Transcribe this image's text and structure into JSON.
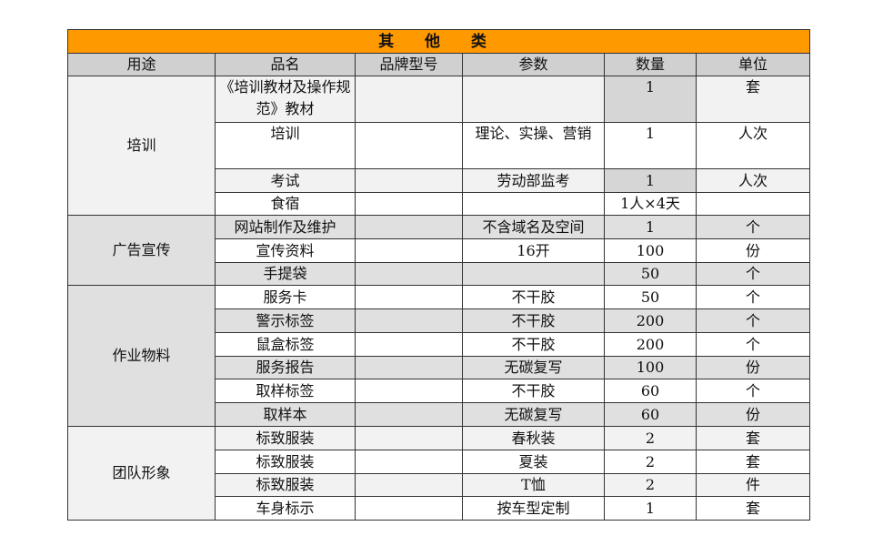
{
  "title": "其 他 类",
  "headers": [
    "用途",
    "品名",
    "品牌型号",
    "参数",
    "数量",
    "单位"
  ],
  "groups": [
    {
      "name": "培训",
      "rows": [
        {
          "item": "《培训教材及操作规范》教材",
          "brand": "",
          "param": "",
          "qty": "1",
          "unit": "套"
        },
        {
          "item": "培训",
          "brand": "",
          "param": "理论、实操、营销",
          "qty": "1",
          "unit": "人次"
        },
        {
          "item": "考试",
          "brand": "",
          "param": "劳动部监考",
          "qty": "1",
          "unit": "人次"
        },
        {
          "item": "食宿",
          "brand": "",
          "param": "",
          "qty": "1人×4天",
          "unit": ""
        }
      ]
    },
    {
      "name": "广告宣传",
      "rows": [
        {
          "item": "网站制作及维护",
          "brand": "",
          "param": "不含域名及空间",
          "qty": "1",
          "unit": "个"
        },
        {
          "item": "宣传资料",
          "brand": "",
          "param": "16开",
          "qty": "100",
          "unit": "份"
        },
        {
          "item": "手提袋",
          "brand": "",
          "param": "",
          "qty": "50",
          "unit": "个"
        }
      ]
    },
    {
      "name": "作业物料",
      "rows": [
        {
          "item": "服务卡",
          "brand": "",
          "param": "不干胶",
          "qty": "50",
          "unit": "个"
        },
        {
          "item": "警示标签",
          "brand": "",
          "param": "不干胶",
          "qty": "200",
          "unit": "个"
        },
        {
          "item": "鼠盒标签",
          "brand": "",
          "param": "不干胶",
          "qty": "200",
          "unit": "个"
        },
        {
          "item": "服务报告",
          "brand": "",
          "param": "无碳复写",
          "qty": "100",
          "unit": "份"
        },
        {
          "item": "取样标签",
          "brand": "",
          "param": "不干胶",
          "qty": "60",
          "unit": "个"
        },
        {
          "item": "取样本",
          "brand": "",
          "param": "无碳复写",
          "qty": "60",
          "unit": "份"
        }
      ]
    },
    {
      "name": "团队形象",
      "rows": [
        {
          "item": "标致服装",
          "brand": "",
          "param": "春秋装",
          "qty": "2",
          "unit": "套"
        },
        {
          "item": "标致服装",
          "brand": "",
          "param": "夏装",
          "qty": "2",
          "unit": "套"
        },
        {
          "item": "标致服装",
          "brand": "",
          "param": "T恤",
          "qty": "2",
          "unit": "件"
        },
        {
          "item": "车身标示",
          "brand": "",
          "param": "按车型定制",
          "qty": "1",
          "unit": "套"
        }
      ]
    }
  ]
}
